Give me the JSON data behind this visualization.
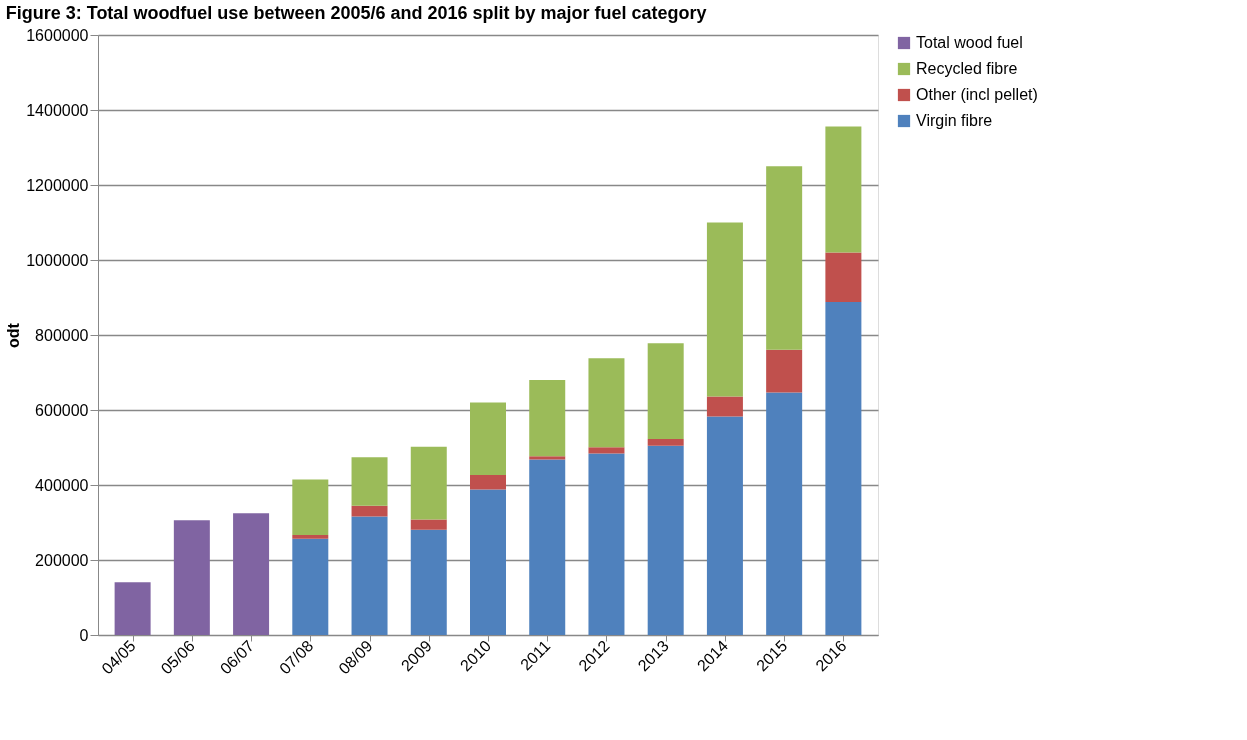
{
  "chart_data": {
    "type": "bar",
    "title": "Figure 3: Total woodfuel use between 2005/6 and 2016 split by major fuel category",
    "ylabel": "odt",
    "categories": [
      "04/05",
      "05/06",
      "06/07",
      "07/08",
      "08/09",
      "2009",
      "2010",
      "2011",
      "2012",
      "2013",
      "2014",
      "2015",
      "2016"
    ],
    "stacked": true,
    "series": [
      {
        "name": "Virgin fibre",
        "color": "#4f81bd",
        "values": [
          null,
          null,
          null,
          257000,
          316000,
          281000,
          388000,
          468000,
          484000,
          505000,
          583000,
          647000,
          888000
        ]
      },
      {
        "name": "Other (incl pellet)",
        "color": "#c0504d",
        "values": [
          null,
          null,
          null,
          10000,
          29000,
          27000,
          39000,
          9000,
          17000,
          18000,
          53000,
          114000,
          132000
        ]
      },
      {
        "name": "Recycled fibre",
        "color": "#9bbb59",
        "values": [
          null,
          null,
          null,
          148000,
          129000,
          194000,
          193000,
          203000,
          237000,
          255000,
          464000,
          489000,
          336000
        ]
      },
      {
        "name": "Total wood fuel",
        "color": "#8064a2",
        "values": [
          141000,
          306000,
          325000,
          null,
          null,
          null,
          null,
          null,
          null,
          null,
          null,
          null,
          null
        ]
      }
    ],
    "ylim": [
      0,
      1600000
    ],
    "yticks": [
      0,
      200000,
      400000,
      600000,
      800000,
      1000000,
      1200000,
      1400000,
      1600000
    ],
    "grid": "y",
    "legend": "right"
  }
}
